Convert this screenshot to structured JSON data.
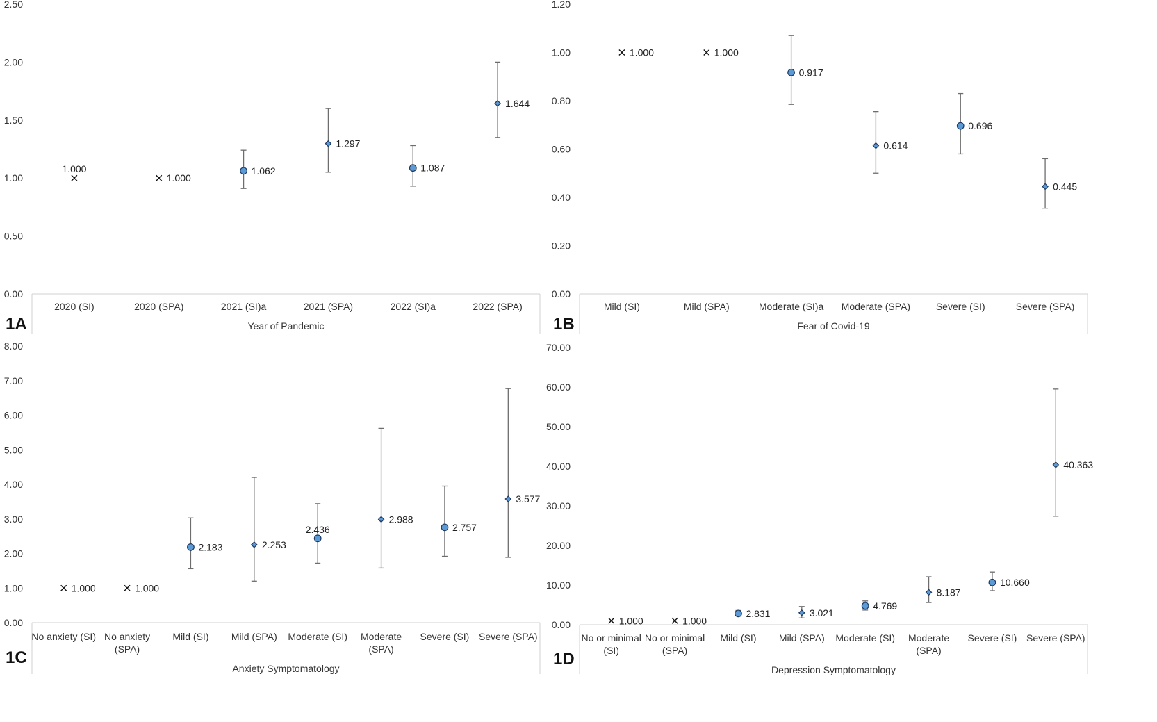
{
  "chart_data": [
    {
      "panel_label": "1A",
      "type": "scatter",
      "xlabel": "Year of Pandemic",
      "ylim": [
        0,
        2.5
      ],
      "yticks": [
        "0.00",
        "0.50",
        "1.00",
        "1.50",
        "2.00",
        "2.50"
      ],
      "grid": false,
      "points": [
        {
          "category": "2020 (SI)",
          "category_lines": [
            "2020 (SI)"
          ],
          "value": 1.0,
          "value_label": "1.000",
          "lower": null,
          "upper": null,
          "marker": "x",
          "label_pos": "above"
        },
        {
          "category": "2020 (SPA)",
          "category_lines": [
            "2020 (SPA)"
          ],
          "value": 1.0,
          "value_label": "1.000",
          "lower": null,
          "upper": null,
          "marker": "x",
          "label_pos": "right"
        },
        {
          "category": "2021 (SI)a",
          "category_lines": [
            "2021 (SI)a"
          ],
          "value": 1.062,
          "value_label": "1.062",
          "lower": 0.91,
          "upper": 1.24,
          "marker": "circle",
          "label_pos": "right"
        },
        {
          "category": "2021 (SPA)",
          "category_lines": [
            "2021 (SPA)"
          ],
          "value": 1.297,
          "value_label": "1.297",
          "lower": 1.05,
          "upper": 1.6,
          "marker": "diamond",
          "label_pos": "right"
        },
        {
          "category": "2022 (SI)a",
          "category_lines": [
            "2022 (SI)a"
          ],
          "value": 1.087,
          "value_label": "1.087",
          "lower": 0.93,
          "upper": 1.28,
          "marker": "circle",
          "label_pos": "right"
        },
        {
          "category": "2022 (SPA)",
          "category_lines": [
            "2022 (SPA)"
          ],
          "value": 1.644,
          "value_label": "1.644",
          "lower": 1.35,
          "upper": 2.0,
          "marker": "diamond",
          "label_pos": "right"
        }
      ]
    },
    {
      "panel_label": "1B",
      "type": "scatter",
      "xlabel": "Fear of Covid-19",
      "ylim": [
        0,
        1.2
      ],
      "yticks": [
        "0.00",
        "0.20",
        "0.40",
        "0.60",
        "0.80",
        "1.00",
        "1.20"
      ],
      "grid": false,
      "points": [
        {
          "category": "Mild (SI)",
          "category_lines": [
            "Mild (SI)"
          ],
          "value": 1.0,
          "value_label": "1.000",
          "lower": null,
          "upper": null,
          "marker": "x",
          "label_pos": "right"
        },
        {
          "category": "Mild (SPA)",
          "category_lines": [
            "Mild (SPA)"
          ],
          "value": 1.0,
          "value_label": "1.000",
          "lower": null,
          "upper": null,
          "marker": "x",
          "label_pos": "right"
        },
        {
          "category": "Moderate (SI)a",
          "category_lines": [
            "Moderate (SI)a"
          ],
          "value": 0.917,
          "value_label": "0.917",
          "lower": 0.785,
          "upper": 1.07,
          "marker": "circle",
          "label_pos": "right"
        },
        {
          "category": "Moderate (SPA)",
          "category_lines": [
            "Moderate (SPA)"
          ],
          "value": 0.614,
          "value_label": "0.614",
          "lower": 0.5,
          "upper": 0.755,
          "marker": "diamond",
          "label_pos": "right"
        },
        {
          "category": "Severe (SI)",
          "category_lines": [
            "Severe (SI)"
          ],
          "value": 0.696,
          "value_label": "0.696",
          "lower": 0.58,
          "upper": 0.83,
          "marker": "circle",
          "label_pos": "right"
        },
        {
          "category": "Severe (SPA)",
          "category_lines": [
            "Severe (SPA)"
          ],
          "value": 0.445,
          "value_label": "0.445",
          "lower": 0.355,
          "upper": 0.56,
          "marker": "diamond",
          "label_pos": "right"
        }
      ]
    },
    {
      "panel_label": "1C",
      "type": "scatter",
      "xlabel": "Anxiety Symptomatology",
      "ylim": [
        0,
        8
      ],
      "yticks": [
        "0.00",
        "1.00",
        "2.00",
        "3.00",
        "4.00",
        "5.00",
        "6.00",
        "7.00",
        "8.00"
      ],
      "grid": false,
      "points": [
        {
          "category": "No anxiety (SI)",
          "category_lines": [
            "No anxiety (SI)"
          ],
          "value": 1.0,
          "value_label": "1.000",
          "lower": null,
          "upper": null,
          "marker": "x",
          "label_pos": "right"
        },
        {
          "category": "No anxiety (SPA)",
          "category_lines": [
            "No anxiety",
            "(SPA)"
          ],
          "value": 1.0,
          "value_label": "1.000",
          "lower": null,
          "upper": null,
          "marker": "x",
          "label_pos": "right"
        },
        {
          "category": "Mild (SI)",
          "category_lines": [
            "Mild (SI)"
          ],
          "value": 2.183,
          "value_label": "2.183",
          "lower": 1.56,
          "upper": 3.03,
          "marker": "circle",
          "label_pos": "right"
        },
        {
          "category": "Mild (SPA)",
          "category_lines": [
            "Mild (SPA)"
          ],
          "value": 2.253,
          "value_label": "2.253",
          "lower": 1.2,
          "upper": 4.2,
          "marker": "diamond",
          "label_pos": "right"
        },
        {
          "category": "Moderate (SI)",
          "category_lines": [
            "Moderate (SI)"
          ],
          "value": 2.436,
          "value_label": "2.436",
          "lower": 1.72,
          "upper": 3.44,
          "marker": "circle",
          "label_pos": "above"
        },
        {
          "category": "Moderate (SPA)",
          "category_lines": [
            "Moderate",
            "(SPA)"
          ],
          "value": 2.988,
          "value_label": "2.988",
          "lower": 1.58,
          "upper": 5.62,
          "marker": "diamond",
          "label_pos": "right"
        },
        {
          "category": "Severe (SI)",
          "category_lines": [
            "Severe (SI)"
          ],
          "value": 2.757,
          "value_label": "2.757",
          "lower": 1.92,
          "upper": 3.95,
          "marker": "circle",
          "label_pos": "right"
        },
        {
          "category": "Severe (SPA)",
          "category_lines": [
            "Severe (SPA)"
          ],
          "value": 3.577,
          "value_label": "3.577",
          "lower": 1.89,
          "upper": 6.77,
          "marker": "diamond",
          "label_pos": "right"
        }
      ]
    },
    {
      "panel_label": "1D",
      "type": "scatter",
      "xlabel": "Depression Symptomatology",
      "ylim": [
        0,
        70
      ],
      "yticks": [
        "0.00",
        "10.00",
        "20.00",
        "30.00",
        "40.00",
        "50.00",
        "60.00",
        "70.00"
      ],
      "grid": false,
      "points": [
        {
          "category": "No or minimal (SI)",
          "category_lines": [
            "No or minimal",
            "(SI)"
          ],
          "value": 1.0,
          "value_label": "1.000",
          "lower": null,
          "upper": null,
          "marker": "x",
          "label_pos": "right"
        },
        {
          "category": "No or minimal (SPA)",
          "category_lines": [
            "No or minimal",
            "(SPA)"
          ],
          "value": 1.0,
          "value_label": "1.000",
          "lower": null,
          "upper": null,
          "marker": "x",
          "label_pos": "right"
        },
        {
          "category": "Mild (SI)",
          "category_lines": [
            "Mild (SI)"
          ],
          "value": 2.831,
          "value_label": "2.831",
          "lower": 2.2,
          "upper": 3.6,
          "marker": "circle",
          "label_pos": "right"
        },
        {
          "category": "Mild (SPA)",
          "category_lines": [
            "Mild (SPA)"
          ],
          "value": 3.021,
          "value_label": "3.021",
          "lower": 1.7,
          "upper": 4.6,
          "marker": "diamond",
          "label_pos": "right"
        },
        {
          "category": "Moderate (SI)",
          "category_lines": [
            "Moderate (SI)"
          ],
          "value": 4.769,
          "value_label": "4.769",
          "lower": 3.7,
          "upper": 6.0,
          "marker": "circle",
          "label_pos": "right"
        },
        {
          "category": "Moderate (SPA)",
          "category_lines": [
            "Moderate",
            "(SPA)"
          ],
          "value": 8.187,
          "value_label": "8.187",
          "lower": 5.6,
          "upper": 12.1,
          "marker": "diamond",
          "label_pos": "right"
        },
        {
          "category": "Severe (SI)",
          "category_lines": [
            "Severe (SI)"
          ],
          "value": 10.66,
          "value_label": "10.660",
          "lower": 8.6,
          "upper": 13.3,
          "marker": "circle",
          "label_pos": "right"
        },
        {
          "category": "Severe (SPA)",
          "category_lines": [
            "Severe (SPA)"
          ],
          "value": 40.363,
          "value_label": "40.363",
          "lower": 27.4,
          "upper": 59.5,
          "marker": "diamond",
          "label_pos": "right"
        }
      ]
    }
  ],
  "colors": {
    "marker_fill": "#5b9bd5",
    "marker_stroke": "#1f3864",
    "error_bar": "#6d6d6d",
    "axis_line": "#d0d0d0",
    "text": "#333333"
  }
}
